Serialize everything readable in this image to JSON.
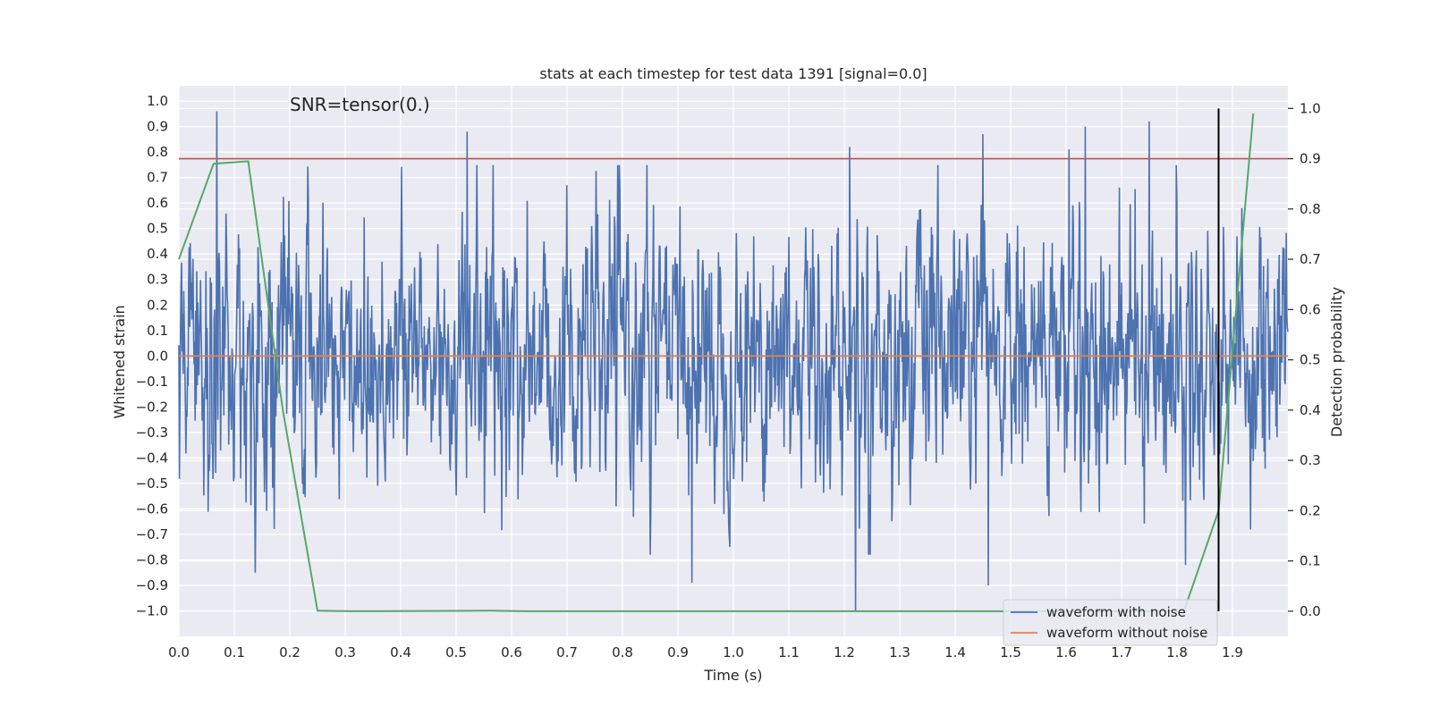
{
  "chart_data": {
    "type": "line",
    "title": "stats at each timestep for test data 1391 [signal=0.0]",
    "annotation": "SNR=tensor(0.)",
    "xlabel": "Time (s)",
    "ylabel_left": "Whitened strain",
    "ylabel_right": "Detection probability",
    "xlim": [
      0.0,
      2.0
    ],
    "ylim_left": [
      -1.1,
      1.06
    ],
    "ylim_right": [
      -0.05,
      1.045
    ],
    "x_ticks": [
      "0.0",
      "0.1",
      "0.2",
      "0.3",
      "0.4",
      "0.5",
      "0.6",
      "0.7",
      "0.8",
      "0.9",
      "1.0",
      "1.1",
      "1.2",
      "1.3",
      "1.4",
      "1.5",
      "1.6",
      "1.7",
      "1.8",
      "1.9"
    ],
    "y_ticks_left": [
      "1.0",
      "0.9",
      "0.8",
      "0.7",
      "0.6",
      "0.5",
      "0.4",
      "0.3",
      "0.2",
      "0.1",
      "0.0",
      "−0.1",
      "−0.2",
      "−0.3",
      "−0.4",
      "−0.5",
      "−0.6",
      "−0.7",
      "−0.8",
      "−0.9",
      "−1.0"
    ],
    "y_ticks_right": [
      "1.0",
      "0.9",
      "0.8",
      "0.7",
      "0.6",
      "0.5",
      "0.4",
      "0.3",
      "0.2",
      "0.1",
      "0.0"
    ],
    "grid": true,
    "legend": {
      "position": "bottom-right",
      "entries": [
        "waveform with noise",
        "waveform without noise"
      ]
    },
    "series": [
      {
        "name": "waveform with noise",
        "axis": "left",
        "style": "noise",
        "x_range": [
          0.0,
          2.0
        ],
        "samples": 2048,
        "amplitude_range": [
          -1.0,
          0.96
        ],
        "peaks": [
          {
            "x": 0.068,
            "y": 0.96
          },
          {
            "x": 0.52,
            "y": 0.88
          },
          {
            "x": 1.21,
            "y": 0.82
          },
          {
            "x": 1.45,
            "y": 0.87
          },
          {
            "x": 1.635,
            "y": 0.9
          },
          {
            "x": 1.75,
            "y": 0.92
          },
          {
            "x": 1.605,
            "y": 0.81
          }
        ],
        "troughs": [
          {
            "x": 0.138,
            "y": -0.85
          },
          {
            "x": 0.925,
            "y": -0.89
          },
          {
            "x": 1.22,
            "y": -1.0
          },
          {
            "x": 1.46,
            "y": -0.9
          },
          {
            "x": 1.815,
            "y": -0.82
          }
        ]
      },
      {
        "name": "waveform without noise",
        "axis": "left",
        "x": [
          0.0,
          2.0
        ],
        "y": [
          0.0,
          0.0
        ]
      },
      {
        "name": "detection probability",
        "axis": "right",
        "x": [
          0.0,
          0.0625,
          0.125,
          0.1875,
          0.25,
          0.3125,
          0.5625,
          0.625,
          1.0,
          1.5,
          1.8125,
          1.875,
          1.9375
        ],
        "y": [
          0.7,
          0.89,
          0.895,
          0.4,
          0.001,
          0.0,
          0.001,
          0.0,
          0.0,
          0.0,
          0.0,
          0.2,
          0.99
        ]
      }
    ],
    "threshold_line": {
      "axis": "right",
      "y": 0.9
    },
    "vertical_line": {
      "x": 1.875,
      "ymin": 0.0,
      "ymax": 1.0
    }
  },
  "colors": {
    "background": "#eaeaf2",
    "grid": "#ffffff",
    "noise": "#4c72b0",
    "clean": "#dd8452",
    "probability": "#55a868",
    "threshold": "#c44e52",
    "vline": "#000000",
    "text": "#262626"
  }
}
